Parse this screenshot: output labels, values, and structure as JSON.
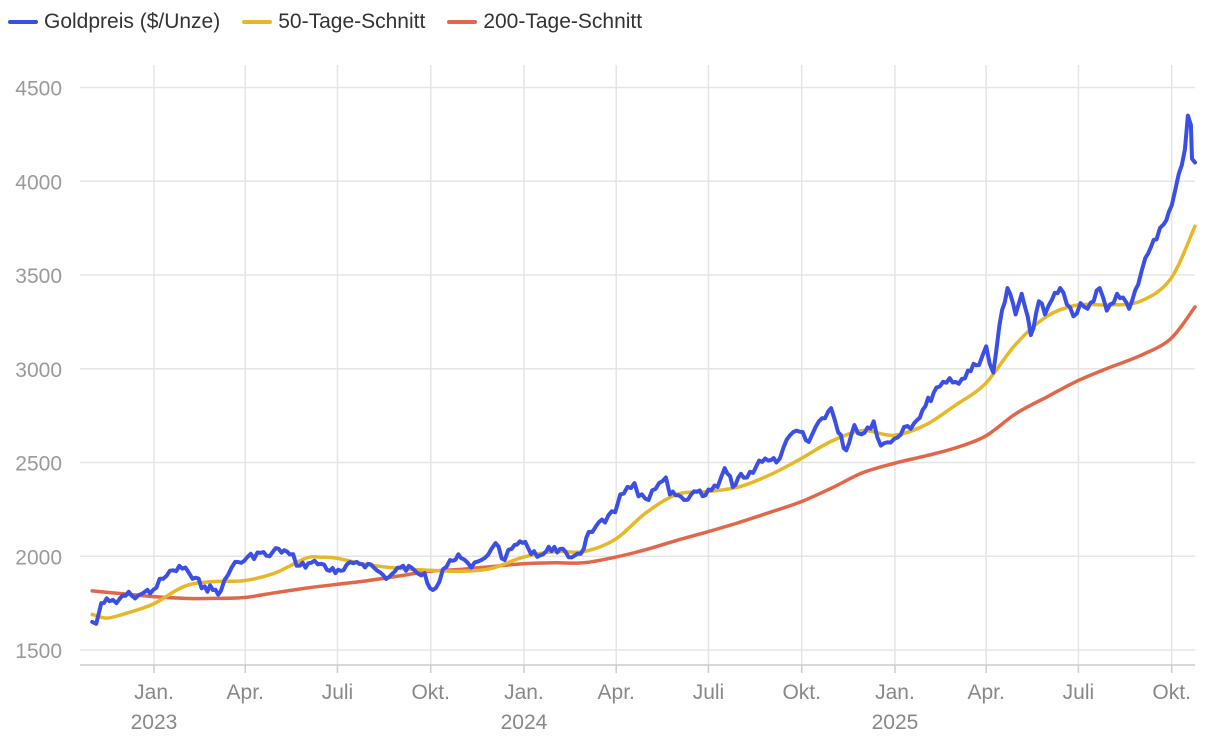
{
  "colors": {
    "gold": "#3b4fe4",
    "ma50": "#e6b829",
    "ma200": "#e2674a",
    "grid": "#e5e5e5",
    "tick_text": "#9a9a9a",
    "month_text": "#888888"
  },
  "legend": [
    {
      "label": "Goldpreis ($/Unze)",
      "color": "#3b4fe4"
    },
    {
      "label": "50-Tage-Schnitt",
      "color": "#e6b829"
    },
    {
      "label": "200-Tage-Schnitt",
      "color": "#e2674a"
    }
  ],
  "chart_data": {
    "type": "line",
    "title": "",
    "xlabel": "",
    "ylabel": "",
    "grid": true,
    "legend_position": "top-left",
    "x_range": [
      "2022-10-20",
      "2025-10-24"
    ],
    "ylim": [
      1420,
      4620
    ],
    "y_ticks": [
      1500,
      2000,
      2500,
      3000,
      3500,
      4000,
      4500
    ],
    "x_ticks": [
      {
        "date": "2023-01-01",
        "label": "Jan.",
        "year": "2023"
      },
      {
        "date": "2023-04-01",
        "label": "Apr.",
        "year": ""
      },
      {
        "date": "2023-07-01",
        "label": "Juli",
        "year": ""
      },
      {
        "date": "2023-10-01",
        "label": "Okt.",
        "year": ""
      },
      {
        "date": "2024-01-01",
        "label": "Jan.",
        "year": "2024"
      },
      {
        "date": "2024-04-01",
        "label": "Apr.",
        "year": ""
      },
      {
        "date": "2024-07-01",
        "label": "Juli",
        "year": ""
      },
      {
        "date": "2024-10-01",
        "label": "Okt.",
        "year": ""
      },
      {
        "date": "2025-01-01",
        "label": "Jan.",
        "year": "2025"
      },
      {
        "date": "2025-04-01",
        "label": "Apr.",
        "year": ""
      },
      {
        "date": "2025-07-01",
        "label": "Juli",
        "year": ""
      },
      {
        "date": "2025-10-01",
        "label": "Okt.",
        "year": ""
      }
    ],
    "series": [
      {
        "name": "Goldpreis ($/Unze)",
        "color": "#3b4fe4",
        "points": [
          [
            "2022-11-01",
            1650
          ],
          [
            "2022-11-05",
            1640
          ],
          [
            "2022-11-10",
            1750
          ],
          [
            "2022-11-18",
            1760
          ],
          [
            "2022-11-25",
            1750
          ],
          [
            "2022-12-01",
            1790
          ],
          [
            "2022-12-10",
            1790
          ],
          [
            "2022-12-20",
            1800
          ],
          [
            "2022-12-31",
            1820
          ],
          [
            "2023-01-10",
            1880
          ],
          [
            "2023-01-20",
            1925
          ],
          [
            "2023-02-01",
            1940
          ],
          [
            "2023-02-08",
            1880
          ],
          [
            "2023-02-20",
            1840
          ],
          [
            "2023-02-28",
            1820
          ],
          [
            "2023-03-08",
            1815
          ],
          [
            "2023-03-15",
            1900
          ],
          [
            "2023-03-22",
            1970
          ],
          [
            "2023-03-31",
            1975
          ],
          [
            "2023-04-13",
            2020
          ],
          [
            "2023-04-25",
            2000
          ],
          [
            "2023-05-04",
            2040
          ],
          [
            "2023-05-15",
            2010
          ],
          [
            "2023-05-25",
            1950
          ],
          [
            "2023-06-05",
            1965
          ],
          [
            "2023-06-15",
            1960
          ],
          [
            "2023-06-29",
            1910
          ],
          [
            "2023-07-07",
            1925
          ],
          [
            "2023-07-20",
            1970
          ],
          [
            "2023-07-31",
            1960
          ],
          [
            "2023-08-15",
            1900
          ],
          [
            "2023-08-21",
            1890
          ],
          [
            "2023-09-01",
            1940
          ],
          [
            "2023-09-15",
            1925
          ],
          [
            "2023-09-25",
            1910
          ],
          [
            "2023-10-03",
            1820
          ],
          [
            "2023-10-06",
            1830
          ],
          [
            "2023-10-13",
            1930
          ],
          [
            "2023-10-20",
            1980
          ],
          [
            "2023-10-31",
            1990
          ],
          [
            "2023-11-10",
            1940
          ],
          [
            "2023-11-20",
            1980
          ],
          [
            "2023-11-30",
            2040
          ],
          [
            "2023-12-04",
            2070
          ],
          [
            "2023-12-13",
            1980
          ],
          [
            "2023-12-20",
            2040
          ],
          [
            "2023-12-28",
            2080
          ],
          [
            "2024-01-05",
            2045
          ],
          [
            "2024-01-17",
            2005
          ],
          [
            "2024-01-31",
            2050
          ],
          [
            "2024-02-14",
            1995
          ],
          [
            "2024-02-29",
            2040
          ],
          [
            "2024-03-05",
            2130
          ],
          [
            "2024-03-12",
            2160
          ],
          [
            "2024-03-21",
            2180
          ],
          [
            "2024-03-31",
            2235
          ],
          [
            "2024-04-05",
            2330
          ],
          [
            "2024-04-12",
            2370
          ],
          [
            "2024-04-19",
            2390
          ],
          [
            "2024-04-23",
            2320
          ],
          [
            "2024-05-03",
            2300
          ],
          [
            "2024-05-10",
            2360
          ],
          [
            "2024-05-20",
            2420
          ],
          [
            "2024-05-24",
            2330
          ],
          [
            "2024-06-07",
            2300
          ],
          [
            "2024-06-14",
            2330
          ],
          [
            "2024-06-28",
            2325
          ],
          [
            "2024-07-10",
            2370
          ],
          [
            "2024-07-17",
            2470
          ],
          [
            "2024-07-25",
            2370
          ],
          [
            "2024-08-02",
            2440
          ],
          [
            "2024-08-08",
            2420
          ],
          [
            "2024-08-20",
            2510
          ],
          [
            "2024-08-29",
            2510
          ],
          [
            "2024-09-06",
            2500
          ],
          [
            "2024-09-13",
            2580
          ],
          [
            "2024-09-26",
            2670
          ],
          [
            "2024-10-08",
            2610
          ],
          [
            "2024-10-18",
            2720
          ],
          [
            "2024-10-30",
            2790
          ],
          [
            "2024-11-06",
            2660
          ],
          [
            "2024-11-14",
            2565
          ],
          [
            "2024-11-22",
            2700
          ],
          [
            "2024-11-29",
            2650
          ],
          [
            "2024-12-11",
            2720
          ],
          [
            "2024-12-18",
            2590
          ],
          [
            "2024-12-31",
            2625
          ],
          [
            "2025-01-10",
            2690
          ],
          [
            "2025-01-20",
            2710
          ],
          [
            "2025-01-31",
            2800
          ],
          [
            "2025-02-11",
            2900
          ],
          [
            "2025-02-24",
            2950
          ],
          [
            "2025-03-05",
            2920
          ],
          [
            "2025-03-14",
            2990
          ],
          [
            "2025-03-25",
            3020
          ],
          [
            "2025-04-01",
            3120
          ],
          [
            "2025-04-08",
            2980
          ],
          [
            "2025-04-14",
            3230
          ],
          [
            "2025-04-22",
            3430
          ],
          [
            "2025-04-30",
            3290
          ],
          [
            "2025-05-06",
            3400
          ],
          [
            "2025-05-15",
            3180
          ],
          [
            "2025-05-23",
            3360
          ],
          [
            "2025-05-29",
            3290
          ],
          [
            "2025-06-05",
            3370
          ],
          [
            "2025-06-13",
            3430
          ],
          [
            "2025-06-26",
            3280
          ],
          [
            "2025-07-03",
            3350
          ],
          [
            "2025-07-10",
            3320
          ],
          [
            "2025-07-22",
            3430
          ],
          [
            "2025-07-29",
            3310
          ],
          [
            "2025-08-08",
            3400
          ],
          [
            "2025-08-20",
            3320
          ],
          [
            "2025-08-29",
            3450
          ],
          [
            "2025-09-05",
            3590
          ],
          [
            "2025-09-16",
            3690
          ],
          [
            "2025-09-23",
            3770
          ],
          [
            "2025-10-01",
            3870
          ],
          [
            "2025-10-08",
            4040
          ],
          [
            "2025-10-14",
            4170
          ],
          [
            "2025-10-17",
            4350
          ],
          [
            "2025-10-20",
            4300
          ],
          [
            "2025-10-21",
            4120
          ],
          [
            "2025-10-24",
            4100
          ]
        ]
      },
      {
        "name": "50-Tage-Schnitt",
        "color": "#e6b829",
        "points": [
          [
            "2022-11-01",
            1690
          ],
          [
            "2022-11-15",
            1670
          ],
          [
            "2022-12-01",
            1690
          ],
          [
            "2022-12-31",
            1745
          ],
          [
            "2023-01-31",
            1840
          ],
          [
            "2023-02-28",
            1865
          ],
          [
            "2023-03-31",
            1870
          ],
          [
            "2023-04-30",
            1910
          ],
          [
            "2023-05-31",
            1990
          ],
          [
            "2023-06-15",
            1995
          ],
          [
            "2023-06-30",
            1990
          ],
          [
            "2023-07-31",
            1955
          ],
          [
            "2023-08-31",
            1935
          ],
          [
            "2023-09-30",
            1925
          ],
          [
            "2023-10-31",
            1920
          ],
          [
            "2023-11-30",
            1935
          ],
          [
            "2023-12-31",
            1995
          ],
          [
            "2024-01-31",
            2025
          ],
          [
            "2024-02-29",
            2025
          ],
          [
            "2024-03-31",
            2090
          ],
          [
            "2024-04-30",
            2230
          ],
          [
            "2024-05-31",
            2330
          ],
          [
            "2024-06-30",
            2345
          ],
          [
            "2024-07-31",
            2370
          ],
          [
            "2024-08-31",
            2435
          ],
          [
            "2024-09-30",
            2520
          ],
          [
            "2024-10-31",
            2615
          ],
          [
            "2024-11-30",
            2670
          ],
          [
            "2024-12-31",
            2645
          ],
          [
            "2025-01-31",
            2700
          ],
          [
            "2025-02-28",
            2800
          ],
          [
            "2025-03-31",
            2920
          ],
          [
            "2025-04-30",
            3130
          ],
          [
            "2025-05-31",
            3280
          ],
          [
            "2025-06-30",
            3340
          ],
          [
            "2025-07-31",
            3340
          ],
          [
            "2025-08-31",
            3360
          ],
          [
            "2025-09-30",
            3480
          ],
          [
            "2025-10-24",
            3760
          ]
        ]
      },
      {
        "name": "200-Tage-Schnitt",
        "color": "#e2674a",
        "points": [
          [
            "2022-11-01",
            1815
          ],
          [
            "2022-12-01",
            1800
          ],
          [
            "2022-12-31",
            1785
          ],
          [
            "2023-01-31",
            1775
          ],
          [
            "2023-02-28",
            1775
          ],
          [
            "2023-03-31",
            1780
          ],
          [
            "2023-04-30",
            1805
          ],
          [
            "2023-05-31",
            1830
          ],
          [
            "2023-06-30",
            1850
          ],
          [
            "2023-07-31",
            1870
          ],
          [
            "2023-08-31",
            1895
          ],
          [
            "2023-09-30",
            1920
          ],
          [
            "2023-10-31",
            1930
          ],
          [
            "2023-11-30",
            1945
          ],
          [
            "2023-12-31",
            1960
          ],
          [
            "2024-01-31",
            1965
          ],
          [
            "2024-02-29",
            1965
          ],
          [
            "2024-03-31",
            1995
          ],
          [
            "2024-04-30",
            2035
          ],
          [
            "2024-05-31",
            2085
          ],
          [
            "2024-06-30",
            2130
          ],
          [
            "2024-07-31",
            2180
          ],
          [
            "2024-08-31",
            2235
          ],
          [
            "2024-09-30",
            2290
          ],
          [
            "2024-10-31",
            2365
          ],
          [
            "2024-11-30",
            2445
          ],
          [
            "2024-12-31",
            2495
          ],
          [
            "2025-01-31",
            2535
          ],
          [
            "2025-02-28",
            2575
          ],
          [
            "2025-03-31",
            2640
          ],
          [
            "2025-04-30",
            2760
          ],
          [
            "2025-05-31",
            2850
          ],
          [
            "2025-06-30",
            2935
          ],
          [
            "2025-07-31",
            3005
          ],
          [
            "2025-08-31",
            3070
          ],
          [
            "2025-09-30",
            3160
          ],
          [
            "2025-10-24",
            3330
          ]
        ]
      }
    ]
  }
}
